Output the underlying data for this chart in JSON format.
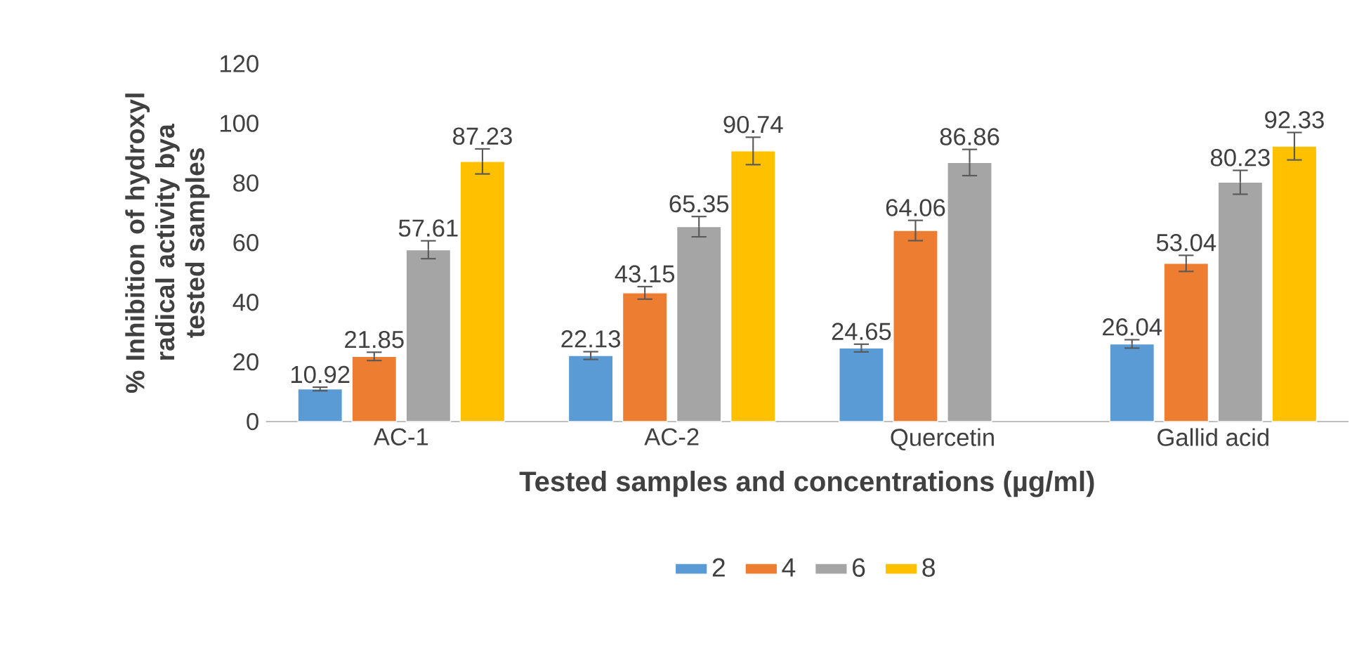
{
  "chart_data": {
    "type": "bar",
    "xlabel": "Tested samples and concentrations (µg/ml)",
    "ylabel": "% Inhibition of hydroxyl radical activity bya tested samples",
    "categories": [
      "AC-1",
      "AC-2",
      "Quercetin",
      "Gallid acid"
    ],
    "series": [
      {
        "name": "2",
        "color": "#5b9bd5",
        "values": [
          10.92,
          22.13,
          24.65,
          26.04
        ],
        "errors": [
          0.6,
          1.3,
          1.3,
          1.4
        ]
      },
      {
        "name": "4",
        "color": "#ed7d31",
        "values": [
          21.85,
          43.15,
          64.06,
          53.04
        ],
        "errors": [
          1.4,
          2.1,
          3.4,
          2.7
        ]
      },
      {
        "name": "6",
        "color": "#a5a5a5",
        "values": [
          57.61,
          65.35,
          86.86,
          80.23
        ],
        "errors": [
          3,
          3.4,
          4.4,
          4
        ]
      },
      {
        "name": "8",
        "color": "#ffc000",
        "values": [
          87.23,
          90.74,
          null,
          92.33
        ],
        "errors": [
          4.2,
          4.6,
          null,
          4.6
        ]
      }
    ],
    "ylim": [
      0,
      120
    ],
    "yticks": [
      0,
      20,
      40,
      60,
      80,
      100,
      120
    ],
    "data_labels": true,
    "legend": "bottom",
    "grid": false
  }
}
